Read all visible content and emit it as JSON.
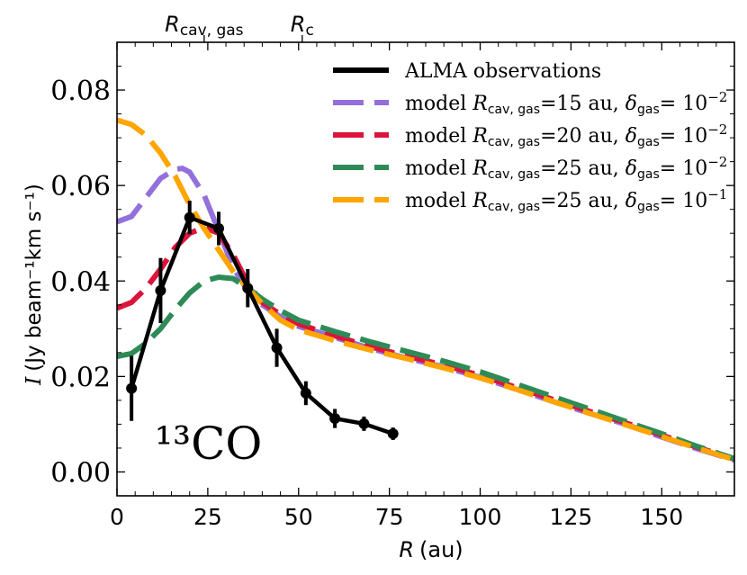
{
  "chart_data": {
    "type": "line",
    "xlabel_symbol": "R",
    "xlabel_unit": "(au)",
    "ylabel_symbol": "I",
    "ylabel_unit": "(Jy beam⁻¹km s⁻¹)",
    "xlim": [
      0,
      170
    ],
    "ylim": [
      -0.005,
      0.09
    ],
    "x_ticks": [
      0,
      25,
      50,
      75,
      100,
      125,
      150
    ],
    "x_tick_labels": [
      "0",
      "25",
      "50",
      "75",
      "100",
      "125",
      "150"
    ],
    "y_ticks": [
      0.0,
      0.02,
      0.04,
      0.06,
      0.08
    ],
    "y_tick_labels": [
      "0.00",
      "0.02",
      "0.04",
      "0.06",
      "0.08"
    ],
    "annotation": "¹³CO",
    "top_markers": [
      {
        "label_main": "R",
        "label_sub": "cav, gas",
        "x": 24
      },
      {
        "label_main": "R",
        "label_sub": "c",
        "x": 51
      }
    ],
    "legend_position": "upper-right",
    "observations": {
      "name": "ALMA observations",
      "color": "#000000",
      "x": [
        4,
        12,
        20,
        28,
        36,
        44,
        52,
        60,
        68,
        76
      ],
      "y": [
        0.0175,
        0.038,
        0.0533,
        0.051,
        0.0385,
        0.026,
        0.0165,
        0.0112,
        0.0101,
        0.008
      ],
      "yerr": [
        0.0068,
        0.0068,
        0.0035,
        0.0035,
        0.004,
        0.004,
        0.0025,
        0.002,
        0.0015,
        0.0013
      ]
    },
    "series": [
      {
        "name_prefix": "model ",
        "name_param": "=15 au, ",
        "name_delta": "= 10",
        "name_exp": "−2",
        "color": "#9370db",
        "x": [
          0,
          4,
          8,
          12,
          16,
          18,
          20,
          24,
          28,
          32,
          36,
          40,
          45,
          50,
          60,
          70,
          80,
          90,
          100,
          110,
          120,
          130,
          140,
          150,
          160,
          170
        ],
        "y": [
          0.0524,
          0.0535,
          0.0575,
          0.0615,
          0.0634,
          0.0636,
          0.0628,
          0.058,
          0.0505,
          0.0428,
          0.038,
          0.035,
          0.0325,
          0.0305,
          0.0282,
          0.0258,
          0.0238,
          0.022,
          0.0198,
          0.0173,
          0.0148,
          0.0123,
          0.01,
          0.0073,
          0.0048,
          0.0025
        ]
      },
      {
        "name_prefix": "model ",
        "name_param": "=20 au, ",
        "name_delta": "= 10",
        "name_exp": "−2",
        "color": "#dc143c",
        "x": [
          0,
          4,
          8,
          12,
          16,
          20,
          24,
          28,
          32,
          36,
          40,
          45,
          50,
          60,
          70,
          80,
          90,
          100,
          110,
          120,
          130,
          140,
          150,
          160,
          170
        ],
        "y": [
          0.0343,
          0.0355,
          0.0385,
          0.0425,
          0.047,
          0.05,
          0.0512,
          0.05,
          0.0455,
          0.0395,
          0.0355,
          0.033,
          0.031,
          0.0285,
          0.0262,
          0.0242,
          0.0224,
          0.0202,
          0.0177,
          0.0152,
          0.0127,
          0.0103,
          0.0077,
          0.0051,
          0.0027
        ]
      },
      {
        "name_prefix": "model ",
        "name_param": "=25 au, ",
        "name_delta": "= 10",
        "name_exp": "−2",
        "color": "#2e8b57",
        "x": [
          0,
          4,
          8,
          12,
          16,
          20,
          24,
          28,
          32,
          36,
          40,
          45,
          50,
          60,
          70,
          80,
          90,
          100,
          110,
          120,
          130,
          140,
          150,
          160,
          170
        ],
        "y": [
          0.0242,
          0.0248,
          0.027,
          0.03,
          0.034,
          0.0375,
          0.04,
          0.0408,
          0.0405,
          0.0385,
          0.0362,
          0.0338,
          0.0318,
          0.0294,
          0.0272,
          0.0252,
          0.0232,
          0.021,
          0.0184,
          0.0158,
          0.0132,
          0.0106,
          0.008,
          0.0053,
          0.0028
        ]
      },
      {
        "name_prefix": "model ",
        "name_param": "=25 au, ",
        "name_delta": "= 10",
        "name_exp": "−1",
        "color": "#ffa500",
        "x": [
          0,
          4,
          8,
          12,
          16,
          20,
          24,
          28,
          32,
          36,
          40,
          45,
          50,
          60,
          70,
          80,
          90,
          100,
          110,
          120,
          130,
          140,
          150,
          160,
          170
        ],
        "y": [
          0.0737,
          0.0728,
          0.0705,
          0.0668,
          0.062,
          0.056,
          0.051,
          0.0465,
          0.042,
          0.0385,
          0.0352,
          0.0318,
          0.0298,
          0.0275,
          0.0255,
          0.0237,
          0.0218,
          0.0197,
          0.0173,
          0.0148,
          0.0123,
          0.0099,
          0.0074,
          0.0049,
          0.0026
        ]
      }
    ]
  }
}
